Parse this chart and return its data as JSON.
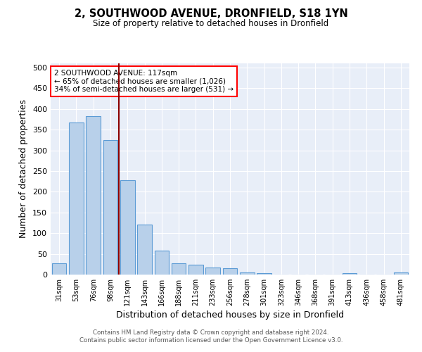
{
  "title1": "2, SOUTHWOOD AVENUE, DRONFIELD, S18 1YN",
  "title2": "Size of property relative to detached houses in Dronfield",
  "xlabel": "Distribution of detached houses by size in Dronfield",
  "ylabel": "Number of detached properties",
  "categories": [
    "31sqm",
    "53sqm",
    "76sqm",
    "98sqm",
    "121sqm",
    "143sqm",
    "166sqm",
    "188sqm",
    "211sqm",
    "233sqm",
    "256sqm",
    "278sqm",
    "301sqm",
    "323sqm",
    "346sqm",
    "368sqm",
    "391sqm",
    "413sqm",
    "436sqm",
    "458sqm",
    "481sqm"
  ],
  "values": [
    28,
    368,
    383,
    325,
    228,
    121,
    58,
    28,
    23,
    17,
    15,
    5,
    4,
    0,
    0,
    0,
    0,
    4,
    0,
    0,
    5
  ],
  "bar_color": "#b8d0ea",
  "bar_edge_color": "#5b9bd5",
  "background_color": "#e8eef8",
  "vline_color": "#8b0000",
  "vline_x_index": 3.5,
  "annotation_text": "2 SOUTHWOOD AVENUE: 117sqm\n← 65% of detached houses are smaller (1,026)\n34% of semi-detached houses are larger (531) →",
  "annotation_box_color": "white",
  "annotation_box_edge": "red",
  "ylim": [
    0,
    510
  ],
  "yticks": [
    0,
    50,
    100,
    150,
    200,
    250,
    300,
    350,
    400,
    450,
    500
  ],
  "footer1": "Contains HM Land Registry data © Crown copyright and database right 2024.",
  "footer2": "Contains public sector information licensed under the Open Government Licence v3.0."
}
